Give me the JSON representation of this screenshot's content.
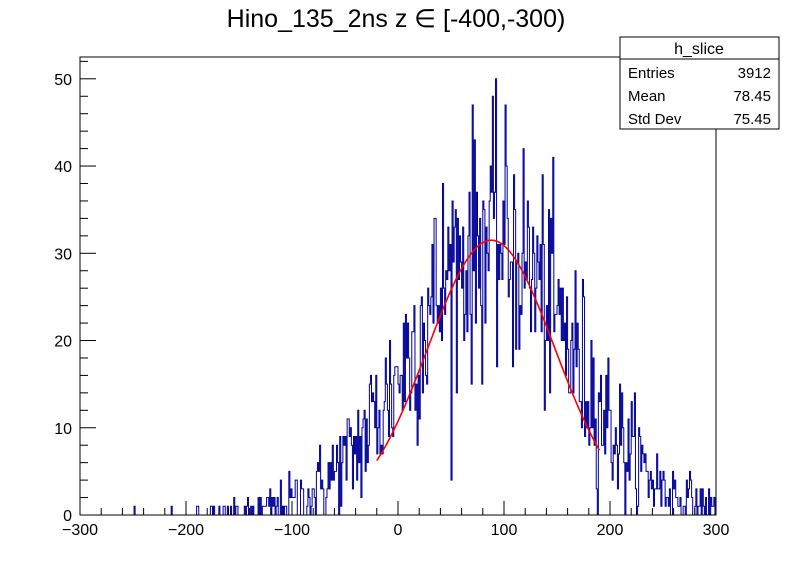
{
  "chart_data": {
    "type": "histogram",
    "title": "Hino_135_2ns z  ∈ [-400,-300)",
    "xlabel": "",
    "ylabel": "",
    "xlim": [
      -300,
      300
    ],
    "ylim": [
      0,
      52.5
    ],
    "x_ticks": [
      -300,
      -200,
      -100,
      0,
      100,
      200,
      300
    ],
    "y_ticks": [
      0,
      10,
      20,
      30,
      40,
      50
    ],
    "grid": false,
    "colors": {
      "histogram": "#000099",
      "fit": "#ff0000"
    },
    "histogram": {
      "bin_width": 1,
      "x_start": -300,
      "mean": 78.45,
      "std_dev": 75.45,
      "peak": 31.5,
      "peak_x": 88,
      "max_count": 50
    },
    "fit": {
      "function": "gaus",
      "constant": 31.5,
      "mean": 88,
      "sigma": 60,
      "range": [
        -20,
        190
      ]
    },
    "stats_box": {
      "title": "h_slice",
      "rows": [
        {
          "label": "Entries",
          "value": "3912"
        },
        {
          "label": "Mean",
          "value": "78.45"
        },
        {
          "label": "Std Dev",
          "value": "75.45"
        }
      ]
    }
  }
}
